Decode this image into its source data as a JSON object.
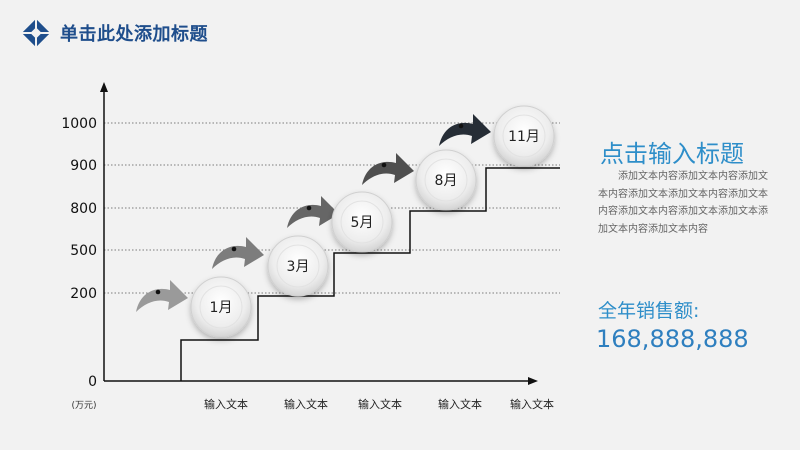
{
  "slide": {
    "title": "单击此处添加标题",
    "accent_color": "#1f4e8c"
  },
  "chart_data": {
    "type": "line",
    "x_labels": [
      "输入文本",
      "输入文本",
      "输入文本",
      "输入文本",
      "输入文本"
    ],
    "y_ticks": [
      "1000",
      "900",
      "800",
      "500",
      "200",
      "0"
    ],
    "y_unit": "(万元)",
    "steps": [
      {
        "label": "1月"
      },
      {
        "label": "3月"
      },
      {
        "label": "5月"
      },
      {
        "label": "8月"
      },
      {
        "label": "11月"
      }
    ],
    "grid": "dotted horizontal at each y tick",
    "arrow_colors": [
      "#9a9a9a",
      "#7d7d7d",
      "#666666",
      "#4f4f4f",
      "#262d36"
    ]
  },
  "side_panel": {
    "title": "点击输入标题",
    "body": "添加文本内容添加文本内容添加文本内容添加文本添加文本内容添加文本内容添加文本内容添加文本添加文本添加文本内容添加文本内容",
    "sales_label": "全年销售额:",
    "sales_value": "168,888,888"
  }
}
